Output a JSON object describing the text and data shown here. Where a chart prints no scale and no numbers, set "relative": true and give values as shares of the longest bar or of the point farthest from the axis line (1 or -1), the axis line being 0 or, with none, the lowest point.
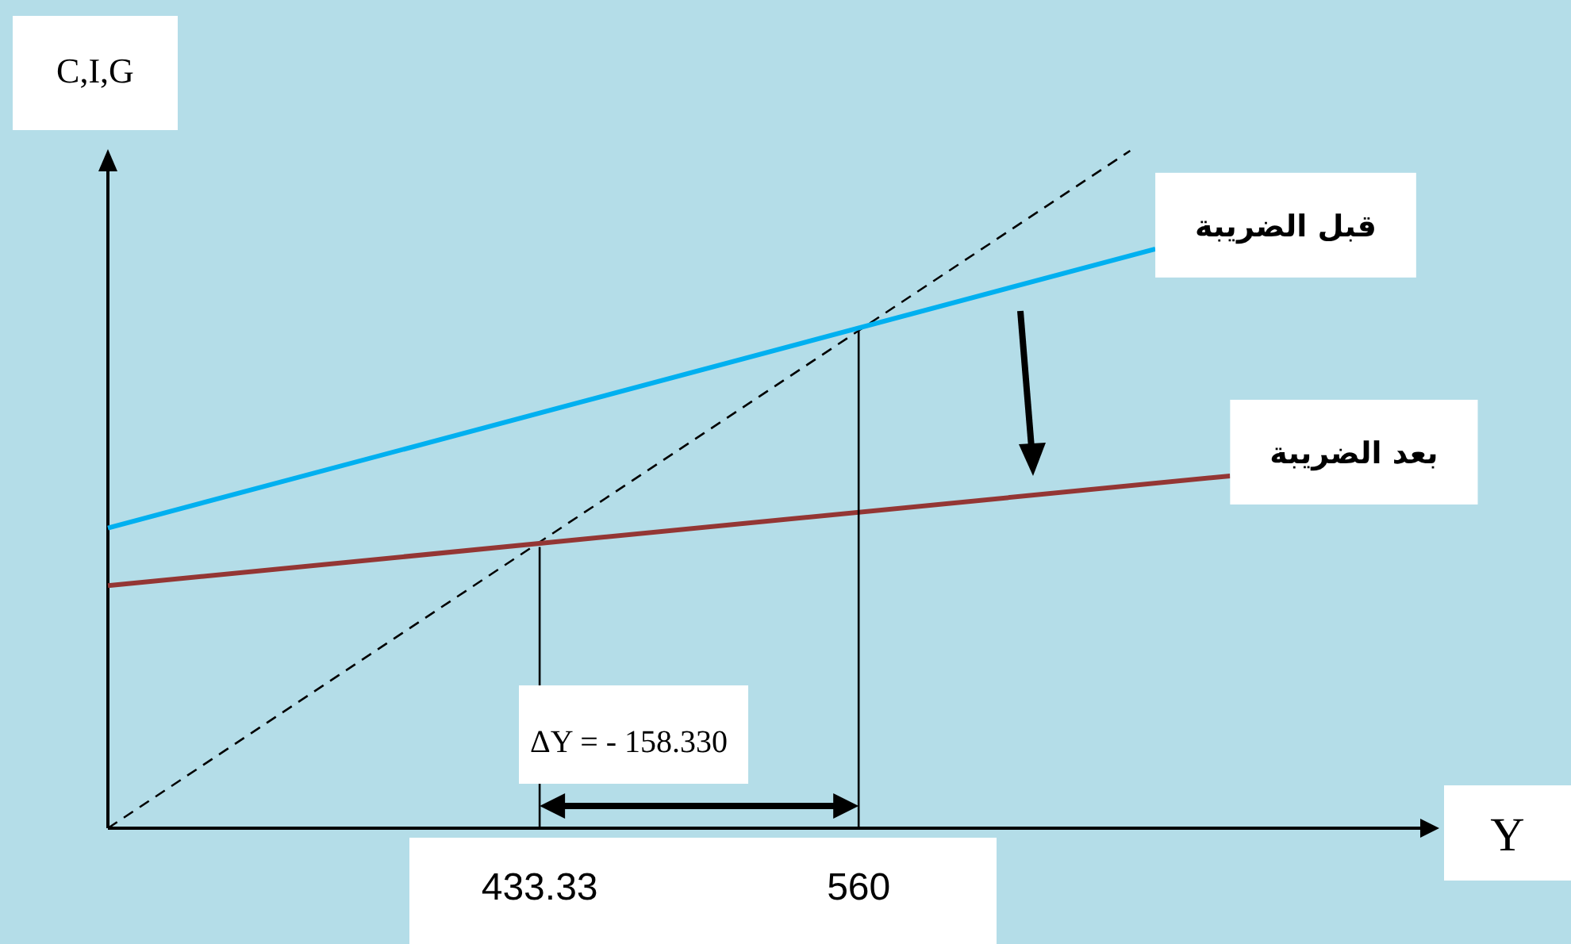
{
  "chart_data": {
    "type": "line",
    "relative": true,
    "xlabel": "Y",
    "ylabel": "C,I,G",
    "xlim": [
      261.9,
      783
    ],
    "xticks": [
      433.33,
      560
    ],
    "legend": false,
    "grid": false,
    "marker": "none",
    "annotations": [
      "ΔY = - 158.330"
    ],
    "series": [
      {
        "color": "#000000",
        "line_style": "dashed",
        "x": [
          261.9,
          667.8
        ],
        "values": [
          0,
          1
        ]
      },
      {
        "name": "قبل الضريبة",
        "color": "#00b0f0",
        "x": [
          261.9,
          677.8
        ],
        "values": [
          0.443,
          0.855
        ]
      },
      {
        "name": "بعد الضريبة",
        "color": "#943634",
        "x": [
          261.9,
          707.5
        ],
        "values": [
          0.358,
          0.52
        ]
      },
      {
        "color": "#000000",
        "x": [
          433.33,
          433.33
        ],
        "values": [
          0,
          0.415
        ]
      }
    ],
    "ref_lines": [
      {
        "axis": "x",
        "value": 560,
        "color": "#000000"
      }
    ]
  }
}
